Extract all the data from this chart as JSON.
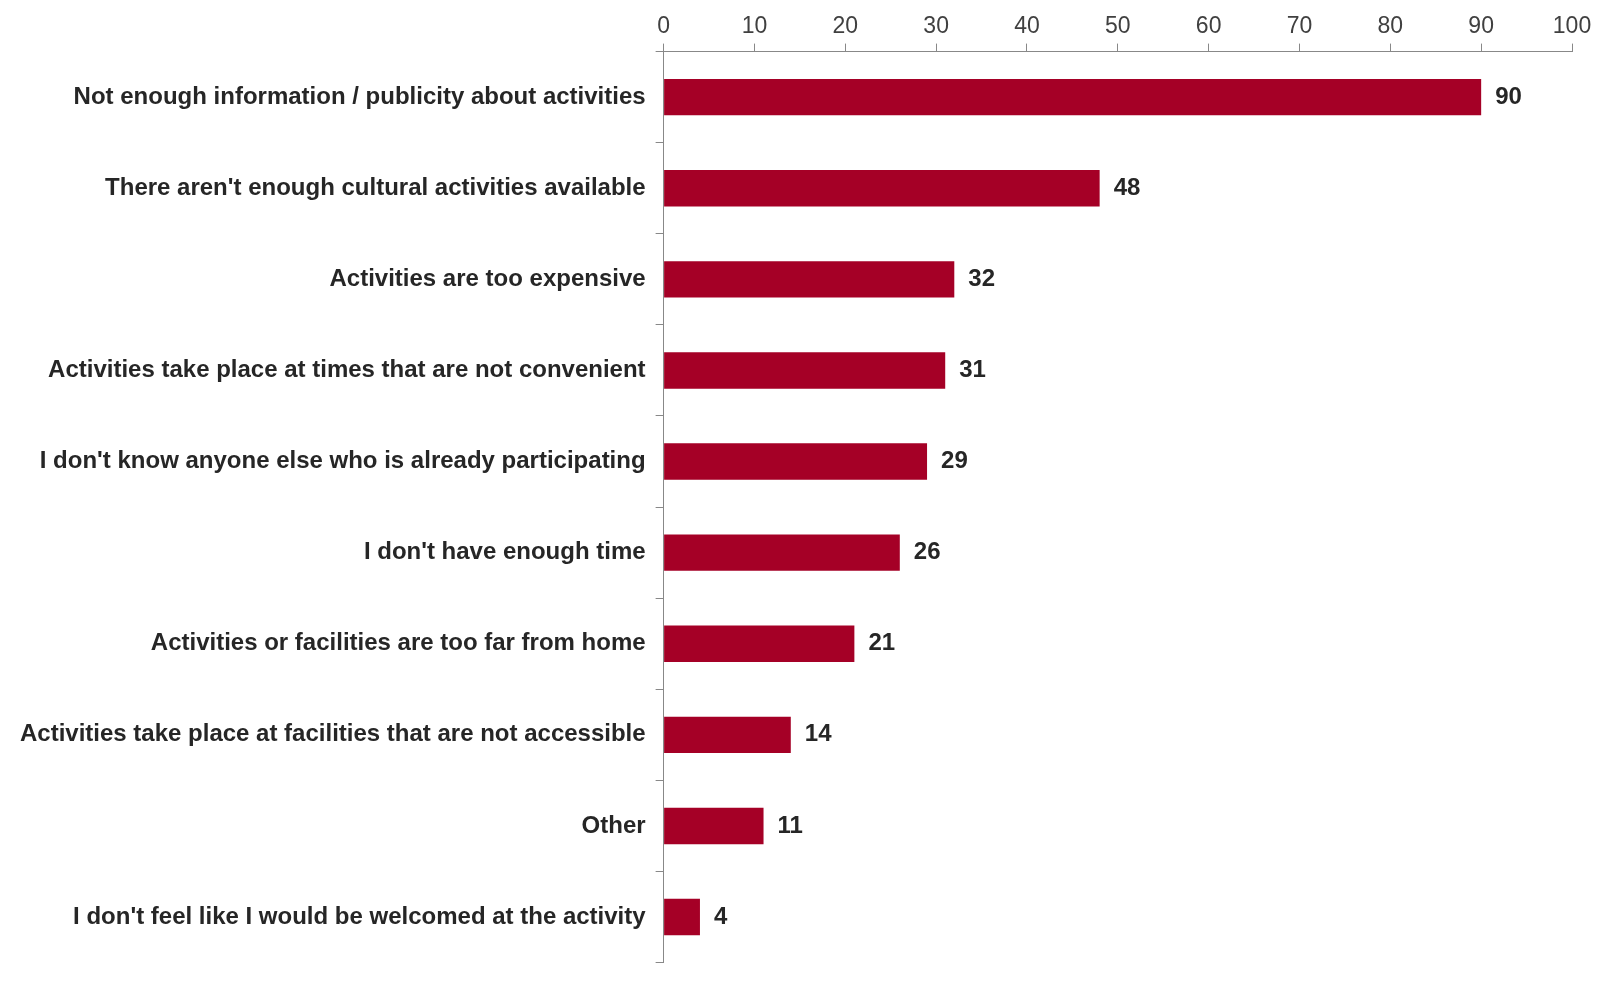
{
  "chart_data": {
    "type": "bar",
    "orientation": "horizontal",
    "categories": [
      "Not enough information / publicity about activities",
      "There aren't enough cultural activities available",
      "Activities are too expensive",
      "Activities take place at times that are not convenient",
      "I don't know anyone else who is already participating",
      "I don't have enough time",
      "Activities or facilities are too far from home",
      "Activities take place at facilities that are not accessible",
      "Other",
      "I don't feel like I would be welcomed at the activity"
    ],
    "values": [
      90,
      48,
      32,
      31,
      29,
      26,
      21,
      14,
      11,
      4
    ],
    "color": "#a50026",
    "xlim": [
      0,
      100
    ],
    "xticks": [
      0,
      10,
      20,
      30,
      40,
      50,
      60,
      70,
      80,
      90,
      100
    ],
    "grid": false,
    "legend": false,
    "data_labels": true
  }
}
